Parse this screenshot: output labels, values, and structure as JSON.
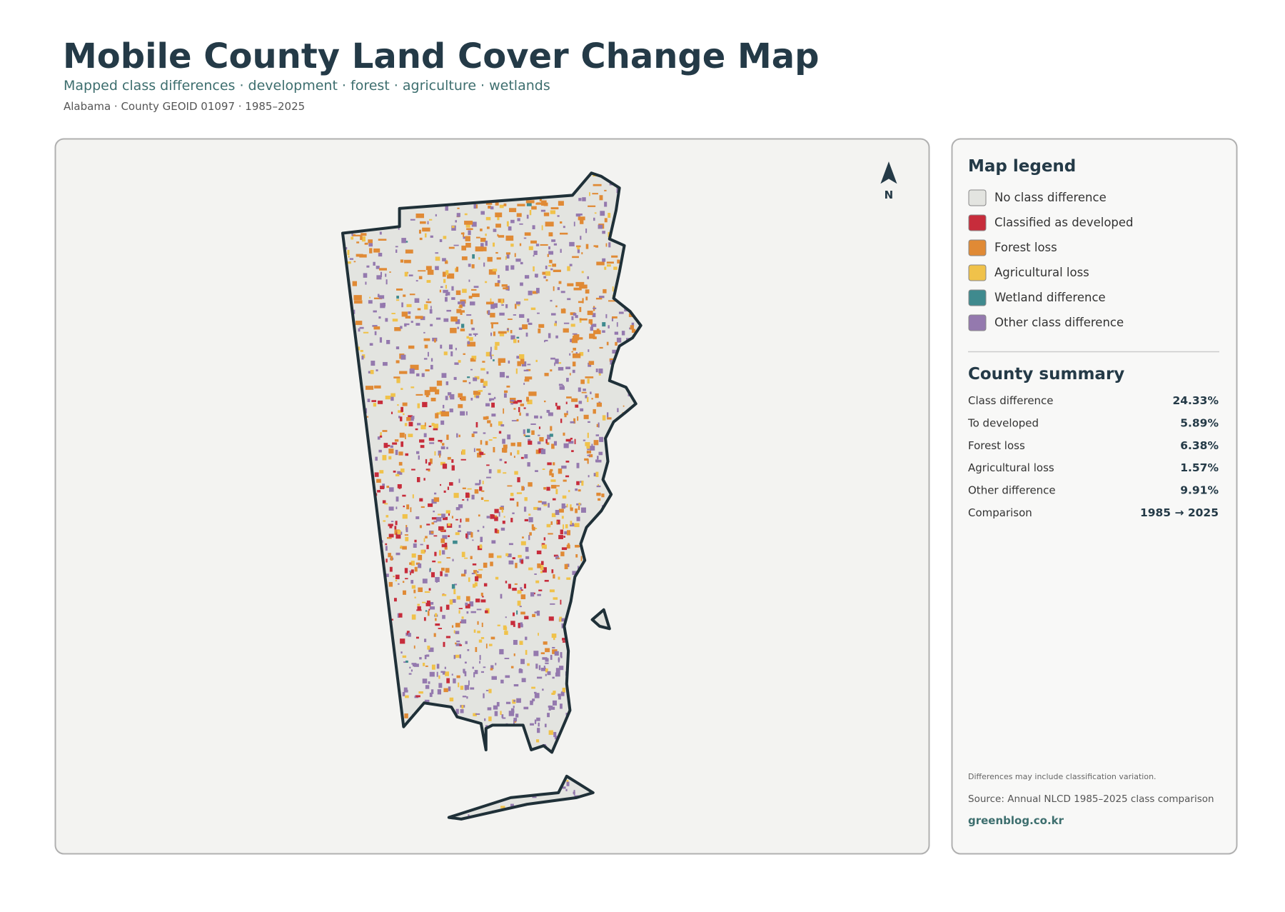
{
  "header": {
    "title": "Mobile County Land Cover Change Map",
    "subtitle": "Mapped class differences · development · forest · agriculture · wetlands",
    "meta": "Alabama · County GEOID 01097 · 1985–2025"
  },
  "map": {
    "north_label": "N"
  },
  "legend": {
    "title": "Map legend",
    "items": [
      {
        "label": "No class difference",
        "color": "#e3e4e0"
      },
      {
        "label": "Classified as developed",
        "color": "#c72c3b"
      },
      {
        "label": "Forest loss",
        "color": "#e08a35"
      },
      {
        "label": "Agricultural loss",
        "color": "#f0c24a"
      },
      {
        "label": "Wetland difference",
        "color": "#3f8a8e"
      },
      {
        "label": "Other class difference",
        "color": "#9479ae"
      }
    ]
  },
  "summary": {
    "title": "County summary",
    "rows": [
      [
        "Class difference",
        "24.33%"
      ],
      [
        "To developed",
        "5.89%"
      ],
      [
        "Forest loss",
        "6.38%"
      ],
      [
        "Agricultural loss",
        "1.57%"
      ],
      [
        "Other difference",
        "9.91%"
      ],
      [
        "Comparison",
        "1985 → 2025"
      ]
    ]
  },
  "footer": {
    "note": "Differences may include classification variation.",
    "source": "Source: Annual NLCD 1985–2025 class comparison",
    "credit": "greenblog.co.kr"
  }
}
